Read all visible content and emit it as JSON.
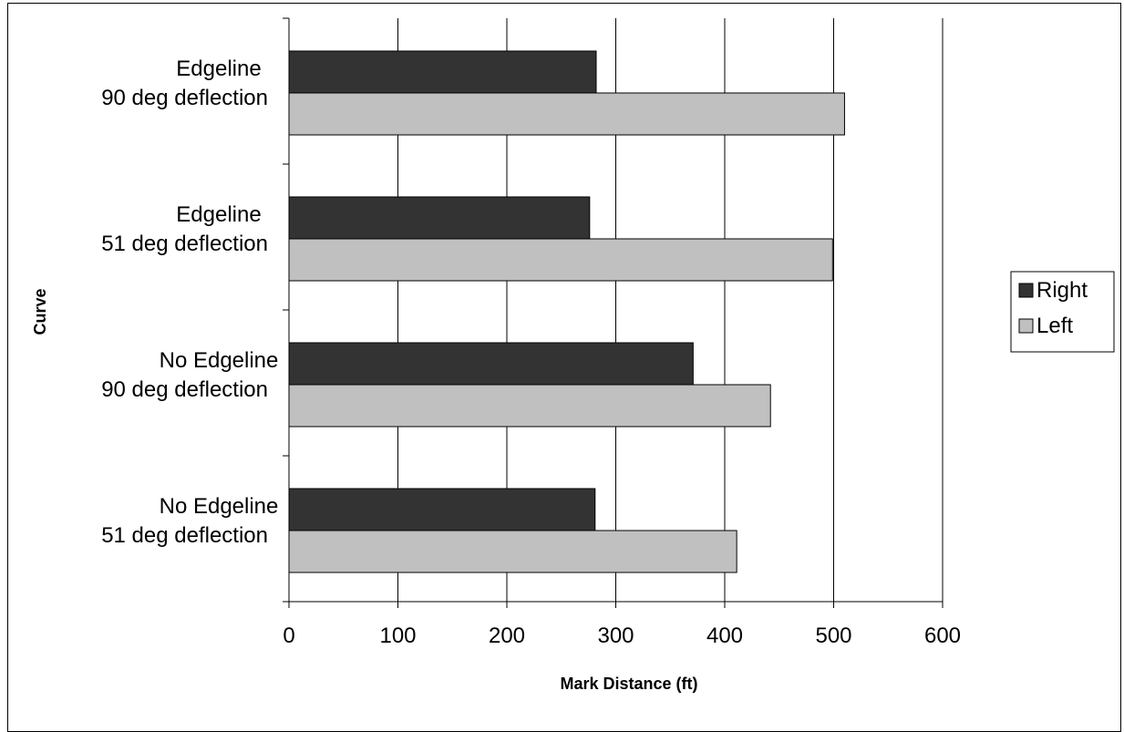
{
  "chart_data": {
    "type": "bar",
    "orientation": "horizontal",
    "title": "",
    "xlabel": "Mark Distance (ft)",
    "ylabel": "Curve",
    "xlim": [
      0,
      600
    ],
    "xticks": [
      0,
      100,
      200,
      300,
      400,
      500,
      600
    ],
    "grid": true,
    "legend_position": "right",
    "categories": [
      {
        "line1": "Edgeline",
        "line2": "90 deg deflection"
      },
      {
        "line1": "Edgeline",
        "line2": "51 deg deflection"
      },
      {
        "line1": "No Edgeline",
        "line2": "90 deg deflection"
      },
      {
        "line1": "No Edgeline",
        "line2": "51 deg deflection"
      }
    ],
    "series": [
      {
        "name": "Right",
        "color": "#333333",
        "values": [
          282,
          276,
          371,
          281
        ]
      },
      {
        "name": "Left",
        "color": "#c0c0c0",
        "values": [
          510,
          499,
          442,
          411
        ]
      }
    ]
  }
}
